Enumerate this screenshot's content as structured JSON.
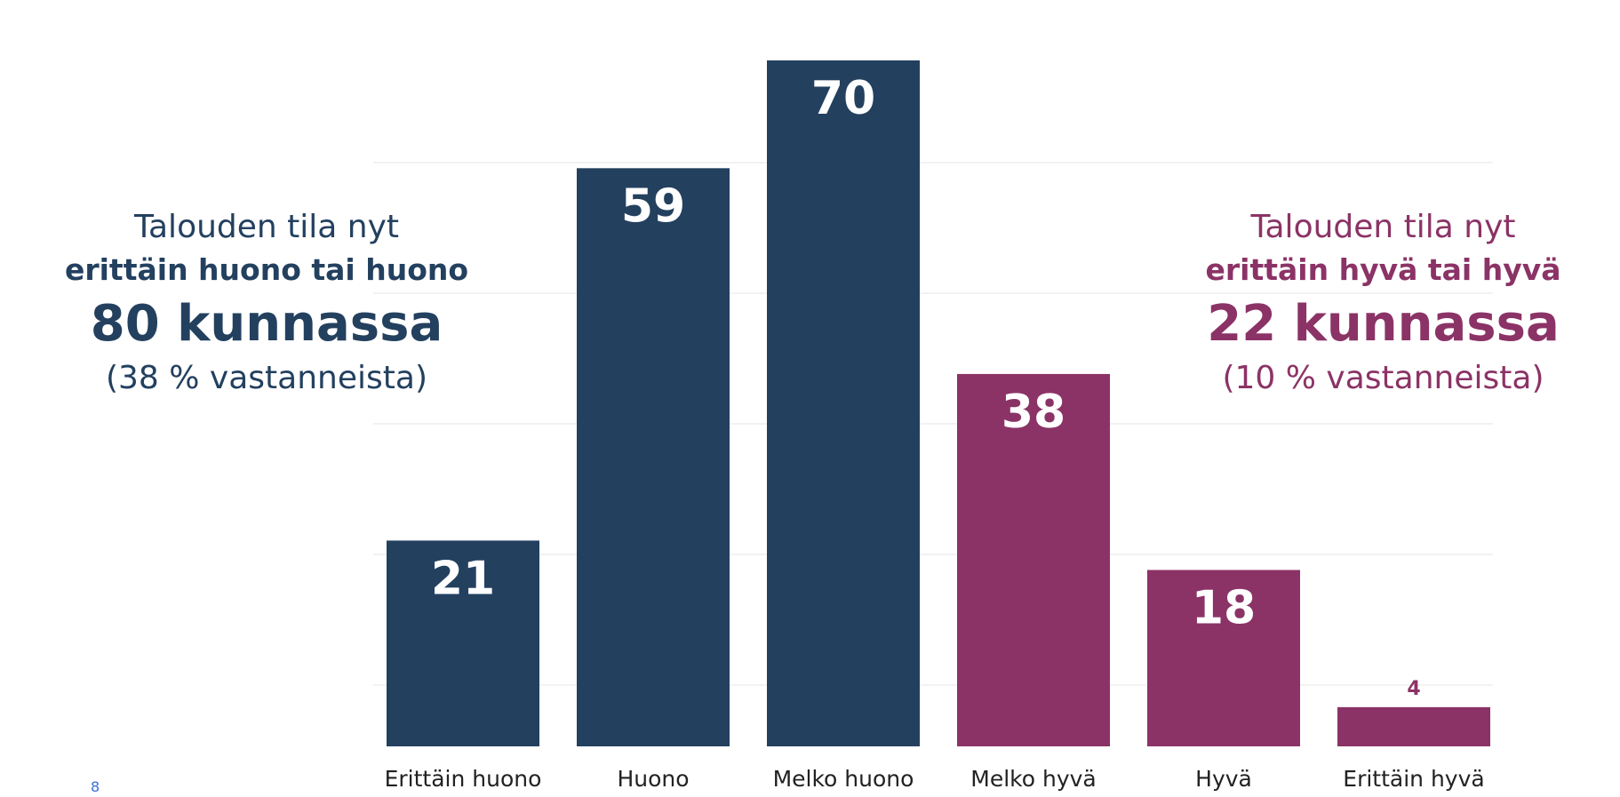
{
  "chart_data": {
    "type": "bar",
    "categories": [
      "Erittäin huono",
      "Huono",
      "Melko huono",
      "Melko hyvä",
      "Hyvä",
      "Erittäin hyvä"
    ],
    "values": [
      21,
      59,
      70,
      38,
      18,
      4
    ],
    "colors": [
      "#23405f",
      "#23405f",
      "#23405f",
      "#8b3366",
      "#8b3366",
      "#8b3366"
    ],
    "ylim": [
      0,
      70
    ],
    "title": "",
    "xlabel": "",
    "ylabel": "",
    "grid": true
  },
  "annotations": {
    "left": {
      "line1": "Talouden tila nyt",
      "line2": "erittäin huono tai huono",
      "line3": "80 kunnassa",
      "line4": "(38 % vastanneista)",
      "color": "#23405f"
    },
    "right": {
      "line1": "Talouden tila nyt",
      "line2": "erittäin hyvä tai hyvä",
      "line3": "22 kunnassa",
      "line4": "(10 % vastanneista)",
      "color": "#8b3366"
    }
  },
  "page_mark": "8"
}
